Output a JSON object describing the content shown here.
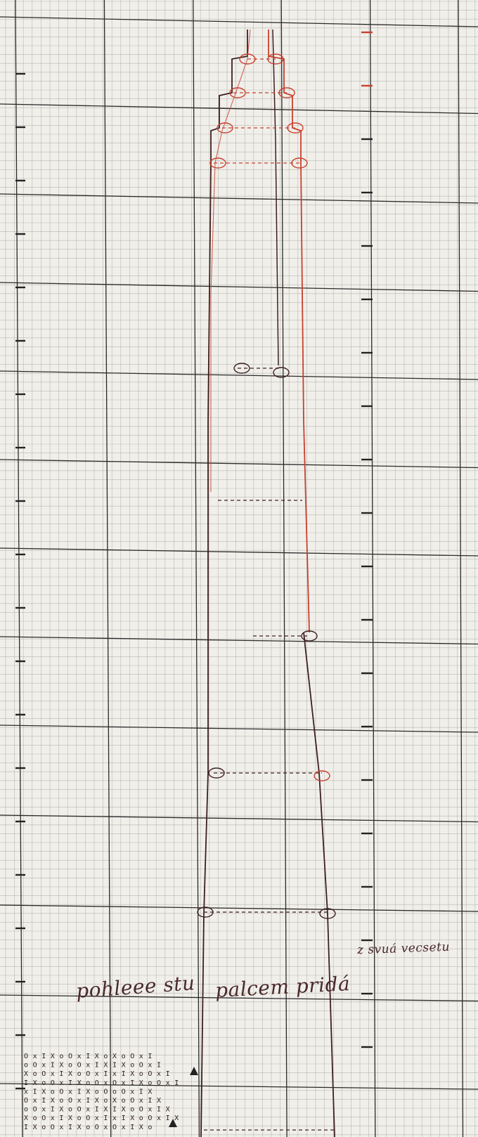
{
  "sheet": {
    "paper_color": "#f1efea",
    "minor_grid_color": "#8c8c88",
    "major_grid_color": "#2a2a2a",
    "ink_dark": "#3d2020",
    "ink_red": "#c8402e"
  },
  "annotations": {
    "left_label": "pohleee stu",
    "center_label": "palcem pridá",
    "right_note": "z svuá vecsetu"
  },
  "stitch_chart": {
    "symbols": [
      "O",
      "X",
      "x",
      "o",
      "I"
    ]
  }
}
